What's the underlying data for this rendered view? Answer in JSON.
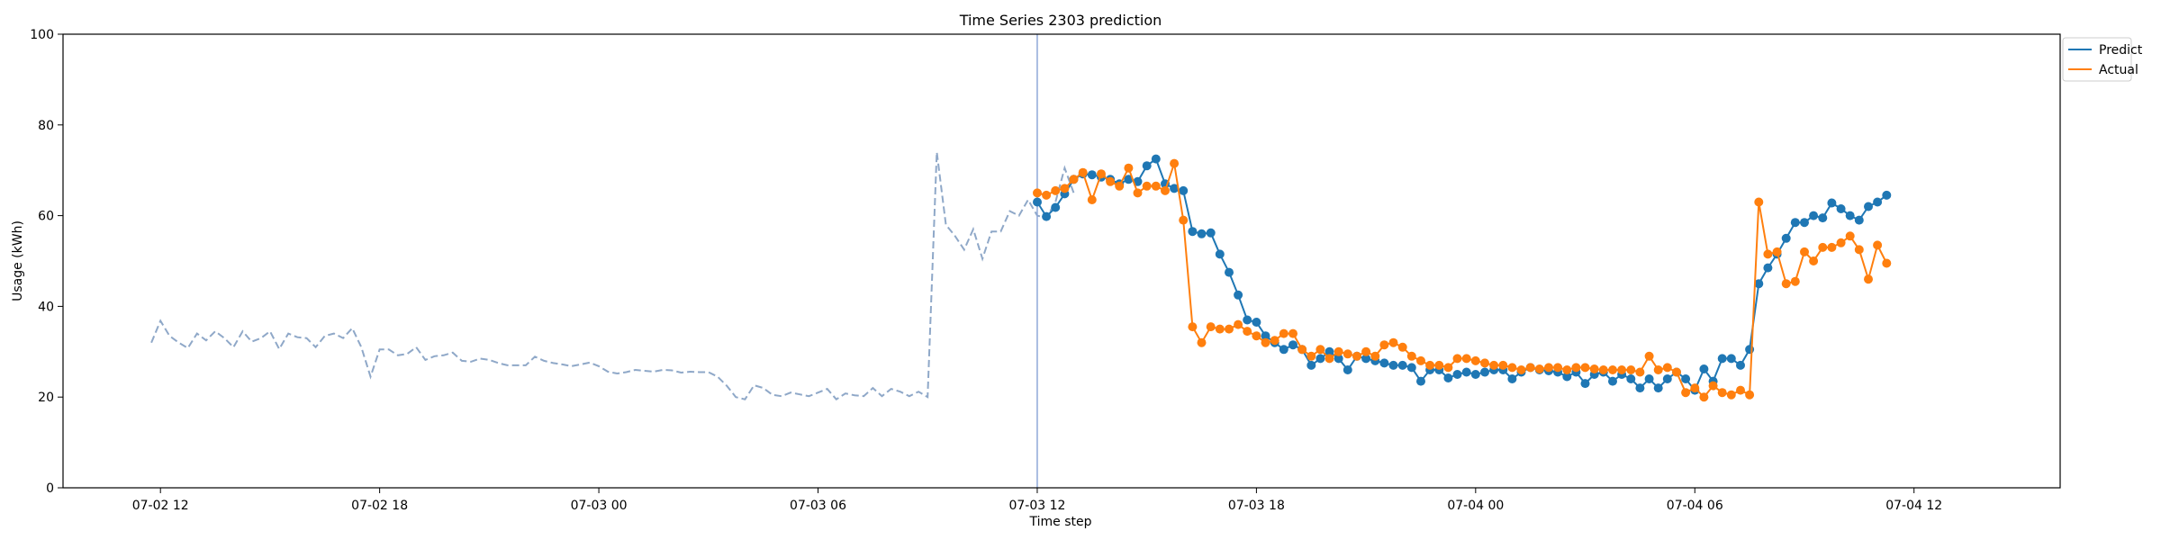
{
  "chart_data": {
    "type": "line",
    "title": "Time Series 2303 prediction",
    "xlabel": "Time step",
    "ylabel": "Usage (kWh)",
    "ylim": [
      0,
      100
    ],
    "yticks": [
      0,
      20,
      40,
      60,
      80,
      100
    ],
    "xlim": [
      "2025-07-02T09:20",
      "2025-07-04T16:00"
    ],
    "xticks": [
      {
        "t": "2025-07-02T12:00",
        "label": "07-02 12"
      },
      {
        "t": "2025-07-02T18:00",
        "label": "07-02 18"
      },
      {
        "t": "2025-07-03T00:00",
        "label": "07-03 00"
      },
      {
        "t": "2025-07-03T06:00",
        "label": "07-03 06"
      },
      {
        "t": "2025-07-03T12:00",
        "label": "07-03 12"
      },
      {
        "t": "2025-07-03T18:00",
        "label": "07-03 18"
      },
      {
        "t": "2025-07-04T00:00",
        "label": "07-04 00"
      },
      {
        "t": "2025-07-04T06:00",
        "label": "07-04 06"
      },
      {
        "t": "2025-07-04T12:00",
        "label": "07-04 12"
      }
    ],
    "forecast_start": "2025-07-03T12:00",
    "step_minutes": 15,
    "history": {
      "start": "2025-07-02T11:45",
      "color": "#8fa8c8",
      "values": [
        32.0,
        36.8,
        33.5,
        32.0,
        30.8,
        34.0,
        32.5,
        34.5,
        33.0,
        31.0,
        34.5,
        32.2,
        33.0,
        34.5,
        30.6,
        34.0,
        33.2,
        33.0,
        31.0,
        33.5,
        34.0,
        33.0,
        35.2,
        31.0,
        24.5,
        30.5,
        30.5,
        29.2,
        29.5,
        31.0,
        28.2,
        29.0,
        29.2,
        29.8,
        28.0,
        27.8,
        28.5,
        28.2,
        27.5,
        27.0,
        27.0,
        27.0,
        28.9,
        28.0,
        27.5,
        27.2,
        26.8,
        27.2,
        27.6,
        26.8,
        25.6,
        25.2,
        25.5,
        26.0,
        25.8,
        25.6,
        26.0,
        25.9,
        25.4,
        25.6,
        25.5,
        25.5,
        24.5,
        22.5,
        20.0,
        19.5,
        22.6,
        22.0,
        20.5,
        20.2,
        21.0,
        20.6,
        20.2,
        21.0,
        21.8,
        19.5,
        20.8,
        20.4,
        20.2,
        22.0,
        20.2,
        21.8,
        21.2,
        20.2,
        21.2,
        20.0,
        74.0,
        58.0,
        55.5,
        52.5,
        57.0,
        50.5,
        56.5,
        56.5,
        61.0,
        60.0,
        63.5,
        60.0,
        59.5,
        63.0,
        70.5,
        65.0
      ]
    },
    "series": [
      {
        "name": "Predict",
        "color": "#1f77b4",
        "start": "2025-07-03T12:00",
        "values": [
          63.0,
          59.8,
          61.8,
          64.8,
          68.0,
          69.2,
          69.0,
          68.5,
          68.0,
          67.0,
          68.0,
          67.5,
          71.0,
          72.5,
          67.0,
          66.0,
          65.5,
          56.5,
          56.0,
          56.2,
          51.5,
          47.5,
          42.5,
          37.0,
          36.5,
          33.5,
          32.0,
          30.5,
          31.5,
          30.5,
          27.0,
          28.5,
          30.0,
          28.5,
          26.0,
          29.0,
          28.5,
          28.0,
          27.5,
          27.0,
          27.0,
          26.5,
          23.5,
          26.0,
          26.0,
          24.2,
          25.0,
          25.5,
          25.0,
          25.5,
          26.0,
          26.0,
          24.0,
          25.5,
          26.5,
          26.0,
          25.8,
          25.5,
          24.5,
          25.5,
          23.0,
          25.0,
          25.5,
          23.5,
          25.0,
          24.0,
          22.0,
          24.0,
          22.0,
          24.0,
          25.5,
          24.0,
          21.5,
          26.2,
          23.5,
          28.5,
          28.5,
          27.0,
          30.5,
          45.0,
          48.5,
          51.5,
          55.0,
          58.5,
          58.5,
          60.0,
          59.5,
          62.8,
          61.5,
          60.0,
          59.0,
          62.0,
          63.0,
          64.5
        ]
      },
      {
        "name": "Actual",
        "color": "#ff7f0e",
        "start": "2025-07-03T12:00",
        "values": [
          65.0,
          64.5,
          65.5,
          66.0,
          68.0,
          69.5,
          63.5,
          69.2,
          67.5,
          66.5,
          70.5,
          65.0,
          66.5,
          66.5,
          65.5,
          71.5,
          59.0,
          35.5,
          32.0,
          35.5,
          35.0,
          35.0,
          36.0,
          34.5,
          33.5,
          32.0,
          32.5,
          34.0,
          34.0,
          30.5,
          29.0,
          30.5,
          28.5,
          30.0,
          29.5,
          29.0,
          30.0,
          29.0,
          31.5,
          32.0,
          31.0,
          29.0,
          28.0,
          27.0,
          27.0,
          26.5,
          28.5,
          28.5,
          28.0,
          27.5,
          27.0,
          27.0,
          26.5,
          26.0,
          26.5,
          26.2,
          26.5,
          26.5,
          26.0,
          26.5,
          26.5,
          26.2,
          26.0,
          26.0,
          26.0,
          26.0,
          25.5,
          29.0,
          26.0,
          26.5,
          25.5,
          21.0,
          22.0,
          20.0,
          22.5,
          21.0,
          20.5,
          21.5,
          20.5,
          63.0,
          51.5,
          52.0,
          45.0,
          45.5,
          52.0,
          50.0,
          53.0,
          53.0,
          54.0,
          55.5,
          52.5,
          46.0,
          53.5,
          49.5
        ]
      }
    ],
    "legend": {
      "placement": "top-right",
      "entries": [
        "Predict",
        "Actual"
      ]
    },
    "grid": false
  }
}
